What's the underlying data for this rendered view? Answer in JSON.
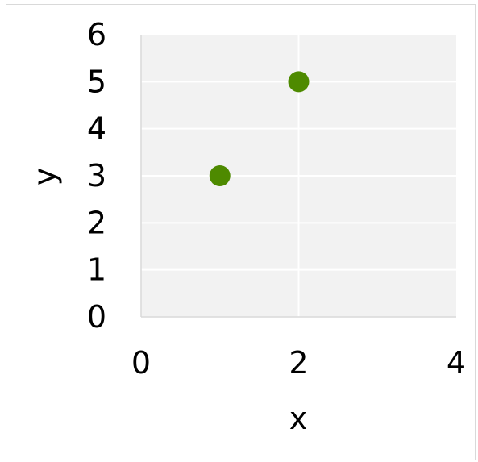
{
  "chart_data": {
    "type": "scatter",
    "title": "",
    "xlabel": "x",
    "ylabel": "y",
    "xlim": [
      0,
      4
    ],
    "ylim": [
      0,
      6
    ],
    "xticks": [
      0,
      2,
      4
    ],
    "yticks": [
      0,
      1,
      2,
      3,
      4,
      5,
      6
    ],
    "grid": true,
    "legend": "none",
    "series": [
      {
        "color": "#4e8a00",
        "points": [
          {
            "x": 1,
            "y": 3
          },
          {
            "x": 2,
            "y": 5
          }
        ]
      }
    ],
    "plot_background": "#f2f2f2",
    "grid_color": "#ffffff"
  }
}
